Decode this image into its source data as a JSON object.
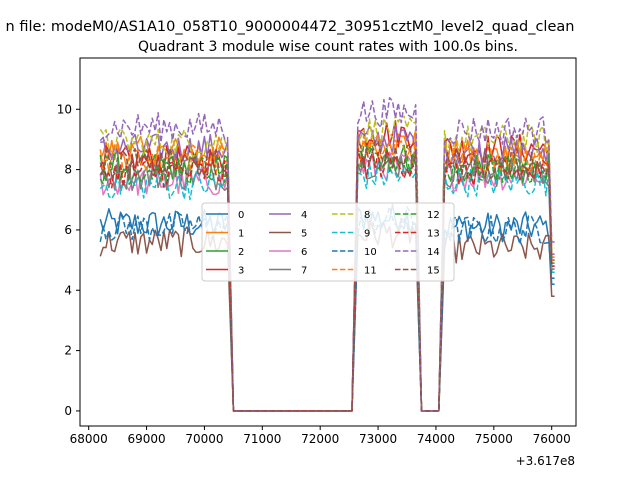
{
  "suptitle": "n file: modeM0/AS1A10_058T10_9000004472_30951cztM0_level2_quad_clean",
  "x_offset_label": "+3.617e8",
  "chart_data": {
    "type": "line",
    "title": "Quadrant 3 module wise count rates with 100.0s bins.",
    "xlabel": "",
    "ylabel": "",
    "xlim": [
      67850,
      76420
    ],
    "ylim": [
      -0.5,
      11.7
    ],
    "x_ticks": [
      68000,
      69000,
      70000,
      71000,
      72000,
      73000,
      74000,
      75000,
      76000
    ],
    "x_tick_labels": [
      "68000",
      "69000",
      "70000",
      "71000",
      "72000",
      "73000",
      "74000",
      "75000",
      "76000"
    ],
    "y_ticks": [
      0,
      2,
      4,
      6,
      8,
      10
    ],
    "y_tick_labels": [
      "0",
      "2",
      "4",
      "6",
      "8",
      "10"
    ],
    "grid": false,
    "legend_position": "center",
    "legend_ncol": 4,
    "time_segments": [
      {
        "start": 68200,
        "end": 70400,
        "phase": "on"
      },
      {
        "start": 70500,
        "end": 72550,
        "phase": "off"
      },
      {
        "start": 72650,
        "end": 73650,
        "phase": "on"
      },
      {
        "start": 73750,
        "end": 74050,
        "phase": "off"
      },
      {
        "start": 74150,
        "end": 76050,
        "phase": "on"
      }
    ],
    "series": [
      {
        "name": "0",
        "color": "#1f77b4",
        "dash": "solid",
        "base_levels": [
          6.2,
          6.4,
          6.1
        ],
        "end_value": 4.2
      },
      {
        "name": "1",
        "color": "#ff7f0e",
        "dash": "solid",
        "base_levels": [
          8.6,
          8.9,
          8.5
        ],
        "end_value": 5.0
      },
      {
        "name": "2",
        "color": "#2ca02c",
        "dash": "solid",
        "base_levels": [
          8.1,
          8.4,
          8.0
        ],
        "end_value": 4.6
      },
      {
        "name": "3",
        "color": "#d62728",
        "dash": "solid",
        "base_levels": [
          8.3,
          9.2,
          8.7
        ],
        "end_value": 4.8
      },
      {
        "name": "4",
        "color": "#9467bd",
        "dash": "solid",
        "base_levels": [
          8.7,
          9.0,
          8.6
        ],
        "end_value": 5.2
      },
      {
        "name": "5",
        "color": "#8c564b",
        "dash": "solid",
        "base_levels": [
          5.6,
          5.9,
          5.4
        ],
        "end_value": 3.8
      },
      {
        "name": "6",
        "color": "#e377c2",
        "dash": "solid",
        "base_levels": [
          7.6,
          8.1,
          7.8
        ],
        "end_value": 4.7
      },
      {
        "name": "7",
        "color": "#7f7f7f",
        "dash": "solid",
        "base_levels": [
          7.8,
          8.2,
          7.9
        ],
        "end_value": 4.7
      },
      {
        "name": "8",
        "color": "#bcbd22",
        "dash": "dashed",
        "base_levels": [
          8.9,
          9.3,
          9.0
        ],
        "end_value": 5.4
      },
      {
        "name": "9",
        "color": "#17becf",
        "dash": "dashed",
        "base_levels": [
          7.5,
          7.8,
          7.6
        ],
        "end_value": 4.6
      },
      {
        "name": "10",
        "color": "#1f77b4",
        "dash": "dashed",
        "base_levels": [
          6.1,
          6.3,
          6.0
        ],
        "end_value": 4.4
      },
      {
        "name": "11",
        "color": "#ff7f0e",
        "dash": "dashed",
        "base_levels": [
          8.4,
          8.7,
          8.4
        ],
        "end_value": 5.1
      },
      {
        "name": "12",
        "color": "#2ca02c",
        "dash": "dashed",
        "base_levels": [
          8.0,
          8.3,
          8.0
        ],
        "end_value": 4.9
      },
      {
        "name": "13",
        "color": "#d62728",
        "dash": "dashed",
        "base_levels": [
          7.9,
          8.2,
          7.9
        ],
        "end_value": 4.8
      },
      {
        "name": "14",
        "color": "#9467bd",
        "dash": "dashed",
        "base_levels": [
          9.4,
          9.9,
          9.3
        ],
        "end_value": 5.6
      },
      {
        "name": "15",
        "color": "#8c564b",
        "dash": "dashed",
        "base_levels": [
          8.2,
          8.5,
          8.2
        ],
        "end_value": 5.0
      }
    ]
  }
}
